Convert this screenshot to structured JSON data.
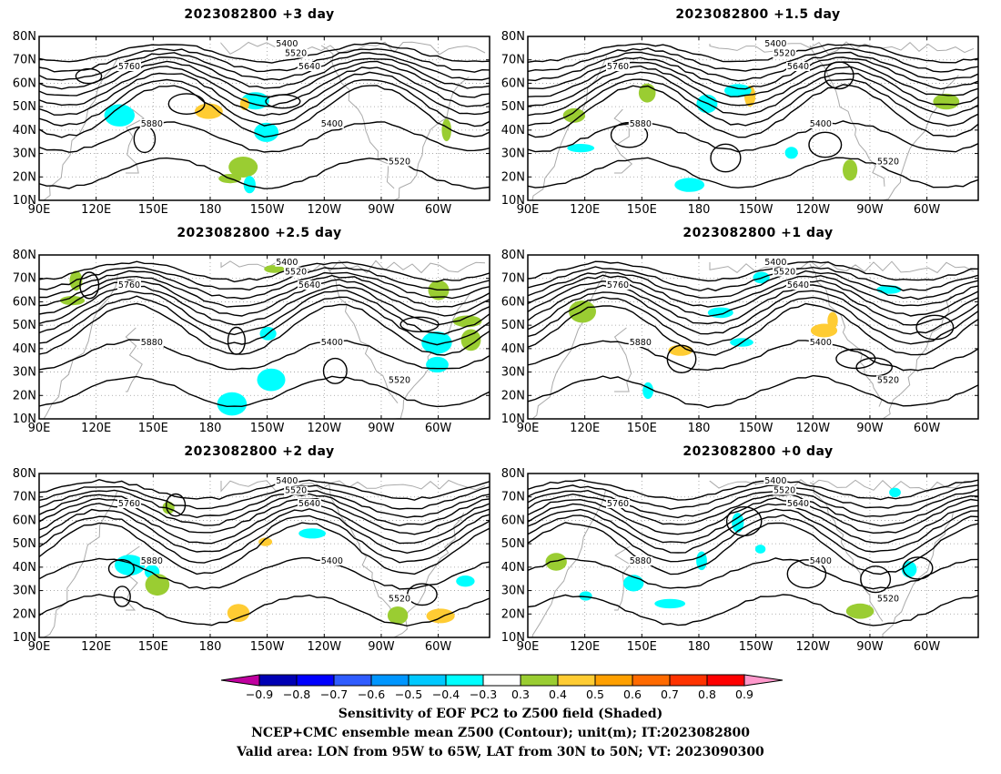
{
  "panels": [
    {
      "title": "2023082800  +3 day"
    },
    {
      "title": "2023082800  +1.5 day"
    },
    {
      "title": "2023082800  +2.5 day"
    },
    {
      "title": "2023082800  +1 day"
    },
    {
      "title": "2023082800  +2 day"
    },
    {
      "title": "2023082800  +0 day"
    }
  ],
  "map_axes": {
    "lat_ticks": [
      "10N",
      "20N",
      "30N",
      "40N",
      "50N",
      "60N",
      "70N",
      "80N"
    ],
    "lon_ticks": [
      "90E",
      "120E",
      "150E",
      "180",
      "150W",
      "120W",
      "90W",
      "60W"
    ]
  },
  "colorbar": {
    "labels": [
      "−0.9",
      "−0.8",
      "−0.7",
      "−0.6",
      "−0.5",
      "−0.4",
      "−0.3",
      "0.3",
      "0.4",
      "0.5",
      "0.6",
      "0.7",
      "0.8",
      "0.9"
    ],
    "colors": [
      "#c0009f",
      "#0000b4",
      "#0000ff",
      "#2f5cff",
      "#0096ff",
      "#00c8ff",
      "#00ffff",
      "#ffffff",
      "#9acd32",
      "#ffcc33",
      "#ffa000",
      "#ff6a00",
      "#ff3300",
      "#ff0000",
      "#ff99cc"
    ]
  },
  "contour_labels": [
    "5400",
    "5520",
    "5640",
    "5760",
    "5880"
  ],
  "footer": {
    "line1": "Sensitivity of EOF PC2 to Z500 field (Shaded)",
    "line2": "NCEP+CMC ensemble mean Z500 (Contour); unit(m); IT:2023082800",
    "line3": "Valid area: LON from 95W to 65W, LAT from 30N to 50N; VT: 2023090300"
  }
}
